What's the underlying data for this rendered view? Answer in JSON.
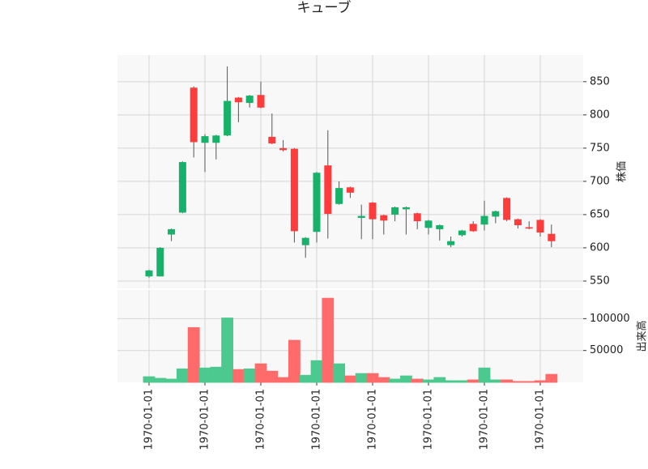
{
  "chart_data": {
    "type": "candlestick",
    "title": "キューブ",
    "ylabel": "株価",
    "volume_label": "出来高",
    "categories": [
      "1970-01-01",
      null,
      null,
      null,
      null,
      "1970-01-01",
      null,
      null,
      null,
      null,
      "1970-01-01",
      null,
      null,
      null,
      null,
      "1970-01-01",
      null,
      null,
      null,
      null,
      "1970-01-01",
      null,
      null,
      null,
      null,
      "1970-01-01",
      null,
      null,
      null,
      null,
      "1970-01-01",
      null,
      null,
      null,
      null,
      "1970-01-01",
      null
    ],
    "open": [
      557,
      557,
      620,
      653,
      841,
      758,
      758,
      769,
      826,
      818,
      830,
      767,
      750,
      749,
      604,
      624,
      724,
      666,
      691,
      645,
      668,
      649,
      650,
      658,
      652,
      630,
      628,
      604,
      619,
      636,
      635,
      647,
      675,
      643,
      631,
      642,
      621
    ],
    "high": [
      567,
      601,
      629,
      730,
      843,
      771,
      770,
      873,
      827,
      830,
      850,
      802,
      762,
      750,
      616,
      714,
      777,
      700,
      692,
      665,
      669,
      650,
      662,
      662,
      653,
      642,
      635,
      617,
      627,
      640,
      671,
      656,
      676,
      644,
      640,
      643,
      635
    ],
    "low": [
      555,
      557,
      610,
      652,
      736,
      714,
      733,
      768,
      789,
      811,
      810,
      756,
      745,
      608,
      585,
      608,
      614,
      665,
      675,
      613,
      613,
      620,
      640,
      620,
      628,
      620,
      611,
      601,
      617,
      624,
      626,
      637,
      640,
      629,
      628,
      617,
      601
    ],
    "close": [
      566,
      600,
      628,
      729,
      759,
      768,
      769,
      821,
      819,
      829,
      811,
      757,
      747,
      625,
      615,
      713,
      651,
      690,
      683,
      648,
      643,
      641,
      661,
      661,
      640,
      641,
      634,
      610,
      626,
      625,
      648,
      655,
      642,
      634,
      629,
      623,
      610
    ],
    "volume": [
      8750,
      6250,
      5000,
      21000,
      86000,
      22500,
      23750,
      101000,
      20000,
      21000,
      29000,
      17500,
      7500,
      66000,
      11000,
      34000,
      132000,
      29000,
      10000,
      13750,
      13750,
      7500,
      5000,
      10000,
      5000,
      3750,
      7500,
      2500,
      2500,
      3750,
      22500,
      3750,
      3750,
      1250,
      1250,
      2500,
      12500
    ],
    "up_color": "#16b26a",
    "down_color": "#ff3b3b",
    "volume_up_color": "#4cc98e",
    "volume_down_color": "#ff6b6b",
    "ylim": [
      539,
      890
    ],
    "yticks": [
      550,
      600,
      650,
      700,
      750,
      800,
      850
    ],
    "volume_ylim": [
      0,
      145000
    ],
    "volume_yticks": [
      50000,
      100000
    ],
    "grid": true
  }
}
